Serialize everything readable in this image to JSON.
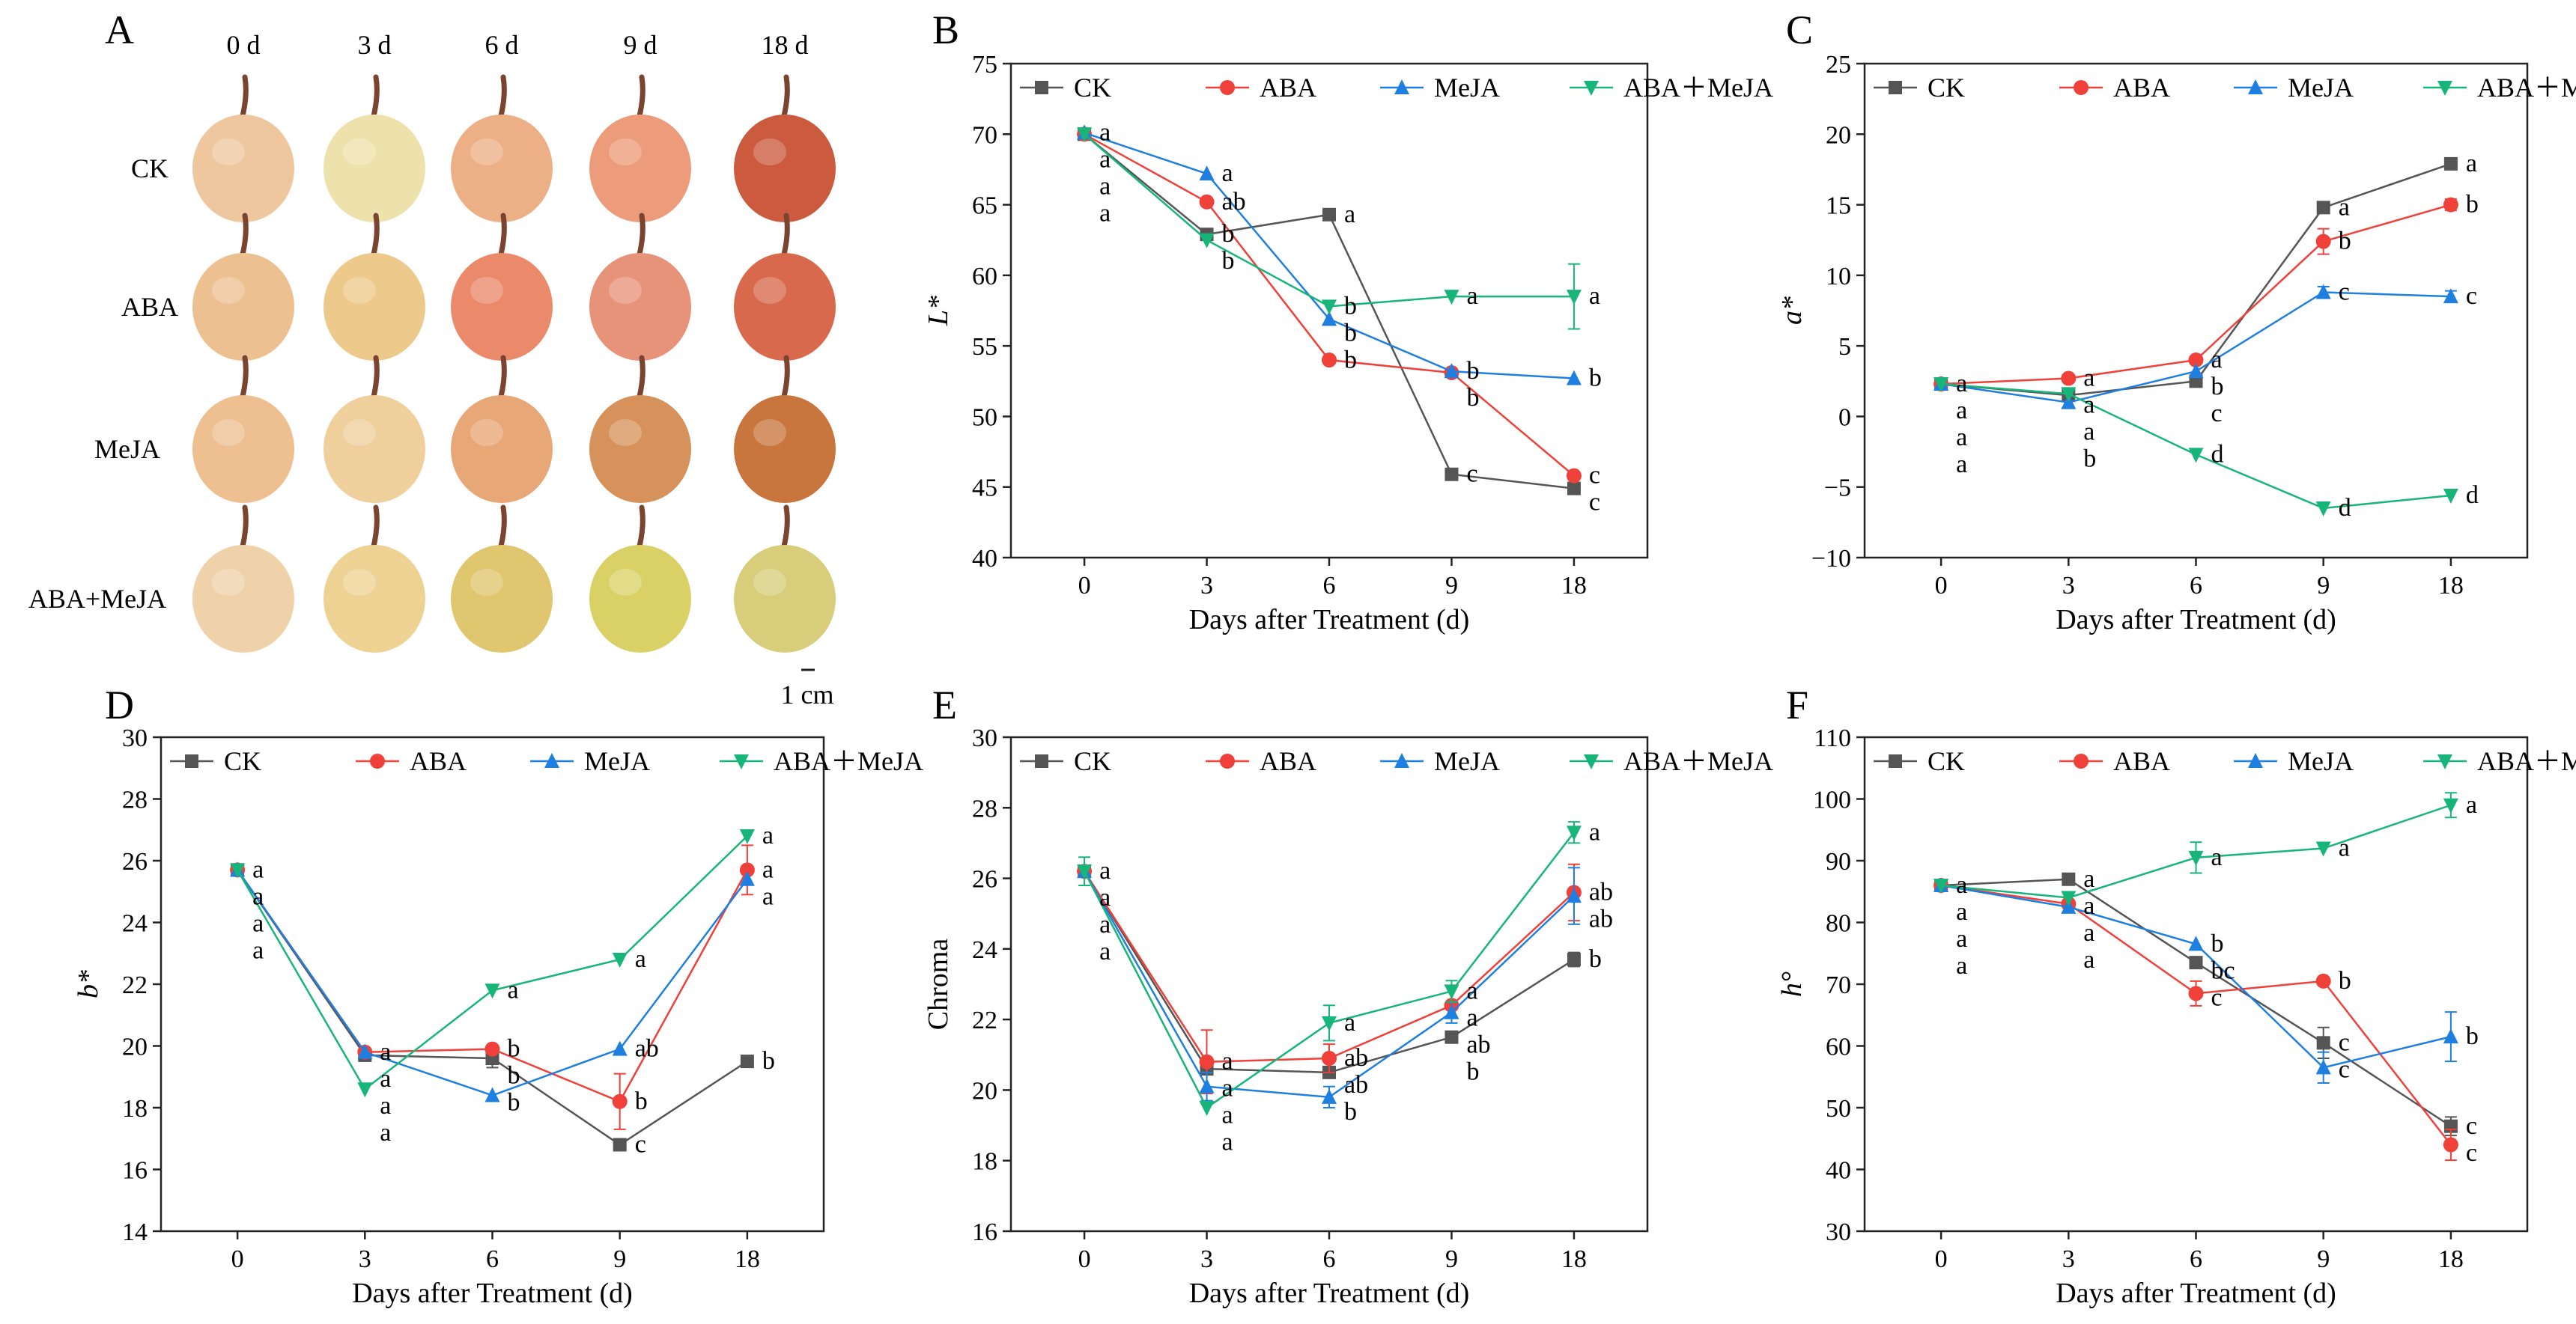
{
  "figure": {
    "colors": {
      "CK": "#555555",
      "ABA": "#f0403a",
      "MeJA": "#1f7fe0",
      "ABA+MeJA": "#18b57a",
      "axis": "#222222"
    },
    "series_names": [
      "CK",
      "ABA",
      "MeJA",
      "ABA+MeJA"
    ],
    "series_legend_labels": [
      "CK",
      "ABA",
      "MeJA",
      "ABA＋MeJA"
    ],
    "photo_panel": {
      "letter": "A",
      "day_labels": [
        "0 d",
        "3 d",
        "6 d",
        "9 d",
        "18 d"
      ],
      "row_labels": [
        "CK",
        "ABA",
        "MeJA",
        "ABA+MeJA"
      ],
      "scale_bar_label": "1 cm",
      "fruit_colors": [
        [
          "#efc79f",
          "#ede2ac",
          "#ecaf86",
          "#ec9c7a",
          "#cc5a3e"
        ],
        [
          "#edc091",
          "#edc98b",
          "#ea8a6a",
          "#e7937a",
          "#d8694c"
        ],
        [
          "#edbf91",
          "#efcf9c",
          "#e8a776",
          "#d6925a",
          "#c8763e"
        ],
        [
          "#efd2a9",
          "#eed293",
          "#e0c66e",
          "#dad166",
          "#d8cd7a"
        ]
      ]
    }
  },
  "chart_data": [
    {
      "panel": "B",
      "type": "line",
      "ylabel": "L*",
      "xlabel": "Days after Treatment (d)",
      "categories": [
        "0",
        "3",
        "6",
        "9",
        "18"
      ],
      "ylim": [
        40,
        75
      ],
      "yticks": [
        40,
        45,
        50,
        55,
        60,
        65,
        70,
        75
      ],
      "series": [
        {
          "name": "CK",
          "values": [
            70.0,
            62.9,
            64.3,
            45.9,
            44.9
          ],
          "errors": [
            0,
            0,
            0,
            0,
            0
          ],
          "letters": [
            "a",
            "b",
            "a",
            "c",
            "c"
          ]
        },
        {
          "name": "ABA",
          "values": [
            70.0,
            65.2,
            54.0,
            53.1,
            45.8
          ],
          "errors": [
            0,
            0,
            0,
            0,
            0
          ],
          "letters": [
            "a",
            "ab",
            "b",
            "b",
            "c"
          ]
        },
        {
          "name": "MeJA",
          "values": [
            70.1,
            67.2,
            56.9,
            53.2,
            52.7
          ],
          "errors": [
            0,
            0,
            0,
            0,
            0
          ],
          "letters": [
            "a",
            "a",
            "b",
            "b",
            "b"
          ]
        },
        {
          "name": "ABA+MeJA",
          "values": [
            70.0,
            62.5,
            57.8,
            58.5,
            58.5
          ],
          "errors": [
            0,
            0,
            0,
            0,
            2.3
          ],
          "letters": [
            "a",
            "b",
            "b",
            "a",
            "a"
          ]
        }
      ]
    },
    {
      "panel": "C",
      "type": "line",
      "ylabel": "a*",
      "xlabel": "Days after Treatment (d)",
      "categories": [
        "0",
        "3",
        "6",
        "9",
        "18"
      ],
      "ylim": [
        -10,
        25
      ],
      "yticks": [
        -10,
        -5,
        0,
        5,
        10,
        15,
        20,
        25
      ],
      "series": [
        {
          "name": "CK",
          "values": [
            2.3,
            1.5,
            2.5,
            14.8,
            17.9
          ],
          "errors": [
            0,
            0,
            0,
            0,
            0
          ],
          "letters": [
            "a",
            "a",
            "c",
            "a",
            "a"
          ]
        },
        {
          "name": "ABA",
          "values": [
            2.3,
            2.7,
            4.0,
            12.4,
            15.0
          ],
          "errors": [
            0,
            0,
            0,
            0.9,
            0.4
          ],
          "letters": [
            "a",
            "a",
            "a",
            "b",
            "b"
          ]
        },
        {
          "name": "MeJA",
          "values": [
            2.3,
            1.0,
            3.2,
            8.8,
            8.5
          ],
          "errors": [
            0,
            0,
            0,
            0.4,
            0.4
          ],
          "letters": [
            "a",
            "b",
            "b",
            "c",
            "c"
          ]
        },
        {
          "name": "ABA+MeJA",
          "values": [
            2.3,
            1.6,
            -2.7,
            -6.5,
            -5.6
          ],
          "errors": [
            0,
            0,
            0,
            0,
            0
          ],
          "letters": [
            "a",
            "a",
            "d",
            "d",
            "d"
          ]
        }
      ]
    },
    {
      "panel": "D",
      "type": "line",
      "ylabel": "b*",
      "xlabel": "Days after Treatment (d)",
      "categories": [
        "0",
        "3",
        "6",
        "9",
        "18"
      ],
      "ylim": [
        14,
        30
      ],
      "yticks": [
        14,
        16,
        18,
        20,
        22,
        24,
        26,
        28,
        30
      ],
      "series": [
        {
          "name": "CK",
          "values": [
            25.7,
            19.7,
            19.6,
            16.8,
            19.5
          ],
          "errors": [
            0,
            0,
            0.3,
            0,
            0
          ],
          "letters": [
            "a",
            "a",
            "b",
            "c",
            "b"
          ]
        },
        {
          "name": "ABA",
          "values": [
            25.7,
            19.8,
            19.9,
            18.2,
            25.7
          ],
          "errors": [
            0,
            0,
            0,
            0.9,
            0.8
          ],
          "letters": [
            "a",
            "a",
            "b",
            "b",
            "a"
          ]
        },
        {
          "name": "MeJA",
          "values": [
            25.7,
            19.8,
            18.4,
            19.9,
            25.4
          ],
          "errors": [
            0,
            0,
            0,
            0,
            0
          ],
          "letters": [
            "a",
            "a",
            "b",
            "ab",
            "a"
          ]
        },
        {
          "name": "ABA+MeJA",
          "values": [
            25.7,
            18.6,
            21.8,
            22.8,
            26.8
          ],
          "errors": [
            0,
            0,
            0,
            0,
            0
          ],
          "letters": [
            "a",
            "a",
            "a",
            "a",
            "a"
          ]
        }
      ]
    },
    {
      "panel": "E",
      "type": "line",
      "ylabel": "Chroma",
      "xlabel": "Days after Treatment (d)",
      "categories": [
        "0",
        "3",
        "6",
        "9",
        "18"
      ],
      "ylim": [
        16,
        30
      ],
      "yticks": [
        16,
        18,
        20,
        22,
        24,
        26,
        28,
        30
      ],
      "series": [
        {
          "name": "CK",
          "values": [
            26.2,
            20.6,
            20.5,
            21.5,
            23.7
          ],
          "errors": [
            0,
            0,
            0,
            0,
            0.2
          ],
          "letters": [
            "a",
            "a",
            "ab",
            "b",
            "b"
          ]
        },
        {
          "name": "ABA",
          "values": [
            26.2,
            20.8,
            20.9,
            22.4,
            25.6
          ],
          "errors": [
            0,
            0.9,
            0.4,
            0,
            0.8
          ],
          "letters": [
            "a",
            "a",
            "ab",
            "a",
            "ab"
          ]
        },
        {
          "name": "MeJA",
          "values": [
            26.2,
            20.1,
            19.8,
            22.2,
            25.5
          ],
          "errors": [
            0,
            0.4,
            0.3,
            0.3,
            0.8
          ],
          "letters": [
            "a",
            "a",
            "b",
            "ab",
            "ab"
          ]
        },
        {
          "name": "ABA+MeJA",
          "values": [
            26.2,
            19.5,
            21.9,
            22.8,
            27.3
          ],
          "errors": [
            0.4,
            0,
            0.5,
            0.3,
            0.3
          ],
          "letters": [
            "a",
            "a",
            "a",
            "a",
            "a"
          ]
        }
      ]
    },
    {
      "panel": "F",
      "type": "line",
      "ylabel": "h°",
      "xlabel": "Days after Treatment (d)",
      "categories": [
        "0",
        "3",
        "6",
        "9",
        "18"
      ],
      "ylim": [
        30,
        110
      ],
      "yticks": [
        30,
        40,
        50,
        60,
        70,
        80,
        90,
        100,
        110
      ],
      "series": [
        {
          "name": "CK",
          "values": [
            86.0,
            87.0,
            73.5,
            60.5,
            47.0
          ],
          "errors": [
            0,
            0,
            0,
            2.5,
            1.5
          ],
          "letters": [
            "a",
            "a",
            "bc",
            "c",
            "c"
          ]
        },
        {
          "name": "ABA",
          "values": [
            86.0,
            83.0,
            68.5,
            70.5,
            44.0
          ],
          "errors": [
            0,
            0,
            2.0,
            0,
            2.5
          ],
          "letters": [
            "a",
            "a",
            "c",
            "b",
            "c"
          ]
        },
        {
          "name": "MeJA",
          "values": [
            86.0,
            82.5,
            76.5,
            56.5,
            61.5
          ],
          "errors": [
            0,
            0,
            0,
            2.5,
            4.0
          ],
          "letters": [
            "a",
            "a",
            "b",
            "c",
            "b"
          ]
        },
        {
          "name": "ABA+MeJA",
          "values": [
            86.0,
            84.0,
            90.5,
            92.0,
            99.0
          ],
          "errors": [
            0,
            0,
            2.5,
            0,
            2.0
          ],
          "letters": [
            "a",
            "a",
            "a",
            "a",
            "a"
          ]
        }
      ]
    }
  ]
}
